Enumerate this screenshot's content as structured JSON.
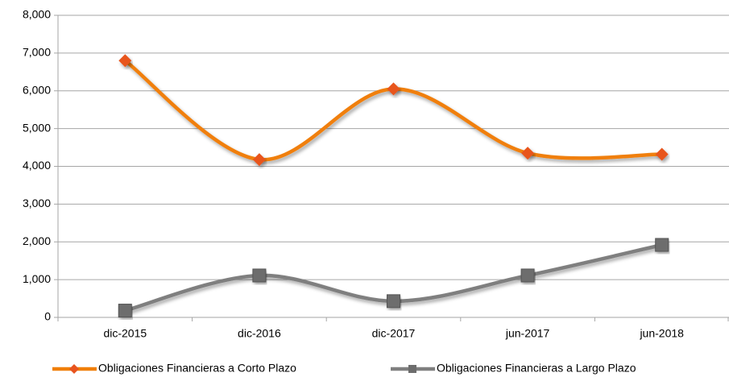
{
  "chart_data": {
    "type": "line",
    "categories": [
      "dic-2015",
      "dic-2016",
      "dic-2017",
      "jun-2017",
      "jun-2018"
    ],
    "series": [
      {
        "name": "Obligaciones Financieras a Corto Plazo",
        "color": "#f07f09",
        "marker_color": "#e8541f",
        "marker": "diamond",
        "values": [
          6800,
          4180,
          6050,
          4350,
          4320
        ]
      },
      {
        "name": "Obligaciones Financieras a Largo Plazo",
        "color": "#7f7f7f",
        "marker_color": "#6d6d6d",
        "marker": "square",
        "values": [
          180,
          1110,
          430,
          1110,
          1920
        ]
      }
    ],
    "ylim": [
      0,
      8000
    ],
    "yticks": [
      0,
      {
        "value": 1000,
        "label": "1,000"
      },
      {
        "value": 2000,
        "label": "2,000"
      },
      {
        "value": 3000,
        "label": "3,000"
      },
      {
        "value": 4000,
        "label": "4,000"
      },
      {
        "value": 5000,
        "label": "5,000"
      },
      {
        "value": 6000,
        "label": "6,000"
      },
      {
        "value": 7000,
        "label": "7,000"
      },
      {
        "value": 8000,
        "label": "8,000"
      }
    ],
    "grid": true,
    "smooth": true,
    "legend": "bottom"
  }
}
